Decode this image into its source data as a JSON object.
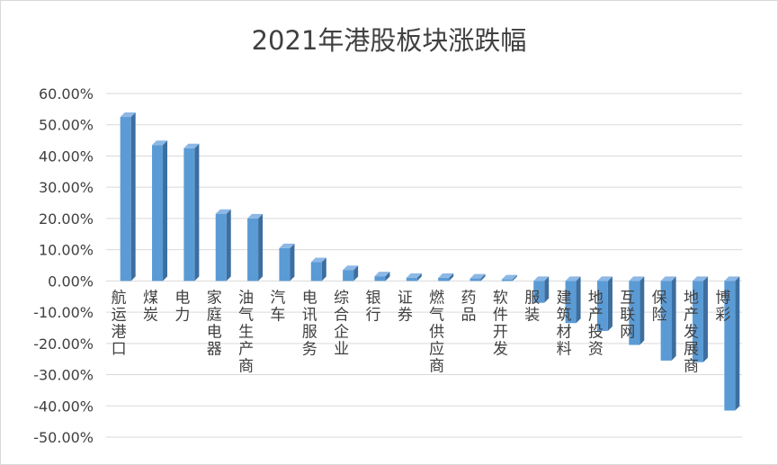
{
  "chart_data": {
    "type": "bar",
    "title": "2021年港股板块涨跌幅",
    "categories": [
      "航运港口",
      "煤炭",
      "电力",
      "家庭电器",
      "油气生产商",
      "汽车",
      "电讯服务",
      "综合企业",
      "银行",
      "证券",
      "燃气供应商",
      "药品",
      "软件开发",
      "服装",
      "建筑材料",
      "地产投资",
      "互联网",
      "保险",
      "地产发展商",
      "博彩"
    ],
    "values": [
      52.5,
      43.5,
      42.5,
      21.5,
      20.0,
      10.5,
      6.0,
      3.5,
      1.5,
      1.0,
      1.0,
      0.8,
      0.5,
      -7.0,
      -13.5,
      -16.0,
      -20.5,
      -25.5,
      -26.0,
      -41.5
    ],
    "yticks": [
      "60.00%",
      "50.00%",
      "40.00%",
      "30.00%",
      "20.00%",
      "10.00%",
      "0.00%",
      "-10.00%",
      "-20.00%",
      "-30.00%",
      "-40.00%",
      "-50.00%"
    ],
    "ylim": [
      -50,
      60
    ],
    "grid": true,
    "bar_color": "#5b9bd5",
    "bar_side_color": "#3c6ea0",
    "bar_top_color": "#8db8e6"
  }
}
